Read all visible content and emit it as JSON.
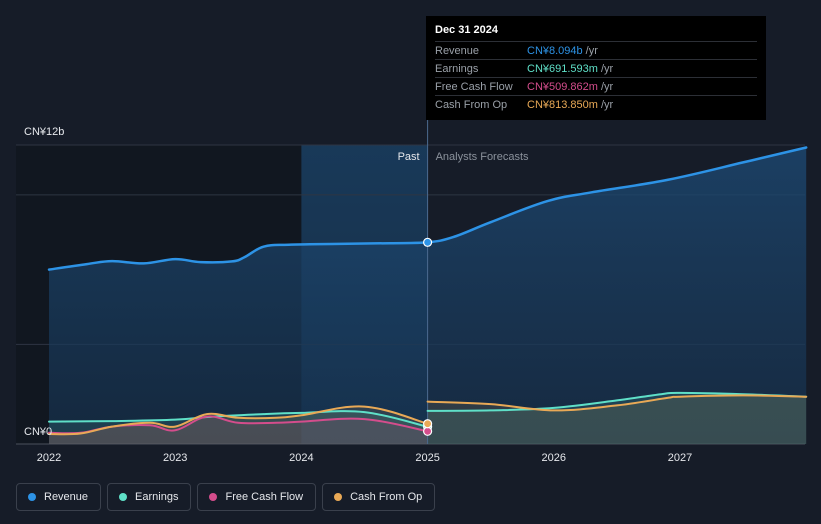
{
  "chart_data": {
    "type": "area",
    "x_ticks": [
      "2022",
      "2023",
      "2024",
      "2025",
      "2026",
      "2027"
    ],
    "y_ticks": [
      "CN¥12b",
      "CN¥0"
    ],
    "ylim": [
      0,
      12
    ],
    "unit": "CN¥ b",
    "regions": {
      "past_label": "Past",
      "forecast_label": "Analysts Forecasts",
      "divider_x": 2025.0
    },
    "series": [
      {
        "name": "Revenue",
        "color": "#2d93e6",
        "points": [
          [
            2022.0,
            7.0
          ],
          [
            2022.3,
            7.22
          ],
          [
            2022.5,
            7.34
          ],
          [
            2022.75,
            7.25
          ],
          [
            2023.0,
            7.42
          ],
          [
            2023.2,
            7.3
          ],
          [
            2023.45,
            7.33
          ],
          [
            2023.55,
            7.5
          ],
          [
            2023.7,
            7.92
          ],
          [
            2023.9,
            8.0
          ],
          [
            2024.3,
            8.03
          ],
          [
            2024.7,
            8.06
          ],
          [
            2025.0,
            8.094
          ],
          [
            2025.2,
            8.3
          ],
          [
            2025.5,
            8.9
          ],
          [
            2025.95,
            9.75
          ],
          [
            2026.3,
            10.1
          ],
          [
            2026.9,
            10.6
          ],
          [
            2027.5,
            11.3
          ],
          [
            2028.0,
            11.9
          ]
        ]
      },
      {
        "name": "Earnings",
        "color": "#5fe0c8",
        "points": [
          [
            2022.0,
            0.9
          ],
          [
            2022.5,
            0.92
          ],
          [
            2023.0,
            0.98
          ],
          [
            2023.3,
            1.1
          ],
          [
            2023.7,
            1.2
          ],
          [
            2024.0,
            1.25
          ],
          [
            2024.5,
            1.28
          ],
          [
            2025.0,
            0.692
          ],
          [
            2025.0,
            1.33
          ],
          [
            2025.5,
            1.35
          ],
          [
            2026.0,
            1.45
          ],
          [
            2026.5,
            1.75
          ],
          [
            2026.85,
            2.0
          ],
          [
            2027.0,
            2.05
          ],
          [
            2027.5,
            2.0
          ],
          [
            2028.0,
            1.9
          ]
        ]
      },
      {
        "name": "Free Cash Flow",
        "color": "#d44d8c",
        "points": [
          [
            2022.0,
            0.45
          ],
          [
            2022.25,
            0.45
          ],
          [
            2022.5,
            0.7
          ],
          [
            2022.8,
            0.75
          ],
          [
            2023.0,
            0.55
          ],
          [
            2023.25,
            1.1
          ],
          [
            2023.5,
            0.85
          ],
          [
            2023.8,
            0.85
          ],
          [
            2024.0,
            0.9
          ],
          [
            2024.5,
            1.0
          ],
          [
            2025.0,
            0.51
          ]
        ]
      },
      {
        "name": "Cash From Op",
        "color": "#e9a956",
        "points": [
          [
            2022.0,
            0.4
          ],
          [
            2022.25,
            0.42
          ],
          [
            2022.5,
            0.7
          ],
          [
            2022.8,
            0.85
          ],
          [
            2023.0,
            0.7
          ],
          [
            2023.25,
            1.2
          ],
          [
            2023.5,
            1.05
          ],
          [
            2023.8,
            1.05
          ],
          [
            2024.0,
            1.15
          ],
          [
            2024.5,
            1.5
          ],
          [
            2025.0,
            0.814
          ],
          [
            2025.0,
            1.7
          ],
          [
            2025.5,
            1.6
          ],
          [
            2026.0,
            1.35
          ],
          [
            2026.5,
            1.55
          ],
          [
            2026.9,
            1.85
          ],
          [
            2027.0,
            1.9
          ],
          [
            2027.5,
            1.95
          ],
          [
            2028.0,
            1.9
          ]
        ]
      }
    ],
    "highlight_x": 2025.0
  },
  "tooltip": {
    "date": "Dec 31 2024",
    "rows": [
      {
        "name": "Revenue",
        "value": "CN¥8.094b",
        "unit": "/yr",
        "color": "#2d93e6"
      },
      {
        "name": "Earnings",
        "value": "CN¥691.593m",
        "unit": "/yr",
        "color": "#5fe0c8"
      },
      {
        "name": "Free Cash Flow",
        "value": "CN¥509.862m",
        "unit": "/yr",
        "color": "#d44d8c"
      },
      {
        "name": "Cash From Op",
        "value": "CN¥813.850m",
        "unit": "/yr",
        "color": "#e9a956"
      }
    ]
  },
  "legend": [
    {
      "label": "Revenue",
      "color": "#2d93e6"
    },
    {
      "label": "Earnings",
      "color": "#5fe0c8"
    },
    {
      "label": "Free Cash Flow",
      "color": "#d44d8c"
    },
    {
      "label": "Cash From Op",
      "color": "#e9a956"
    }
  ]
}
